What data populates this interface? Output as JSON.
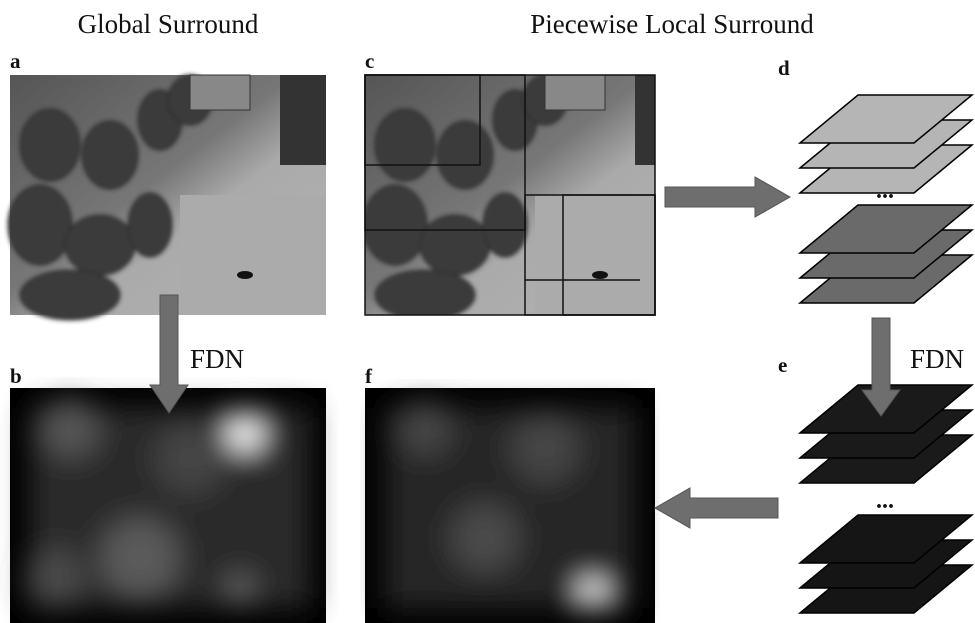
{
  "header": {
    "left_title": "Global Surround",
    "right_title": "Piecewise Local Surround"
  },
  "panels": [
    {
      "label": "a"
    },
    {
      "label": "b"
    },
    {
      "label": "c"
    },
    {
      "label": "d"
    },
    {
      "label": "e"
    },
    {
      "label": "f"
    }
  ],
  "arrows": [
    {
      "label": "FDN"
    },
    {
      "label": "FDN"
    }
  ],
  "separators": [
    "...",
    "..."
  ]
}
